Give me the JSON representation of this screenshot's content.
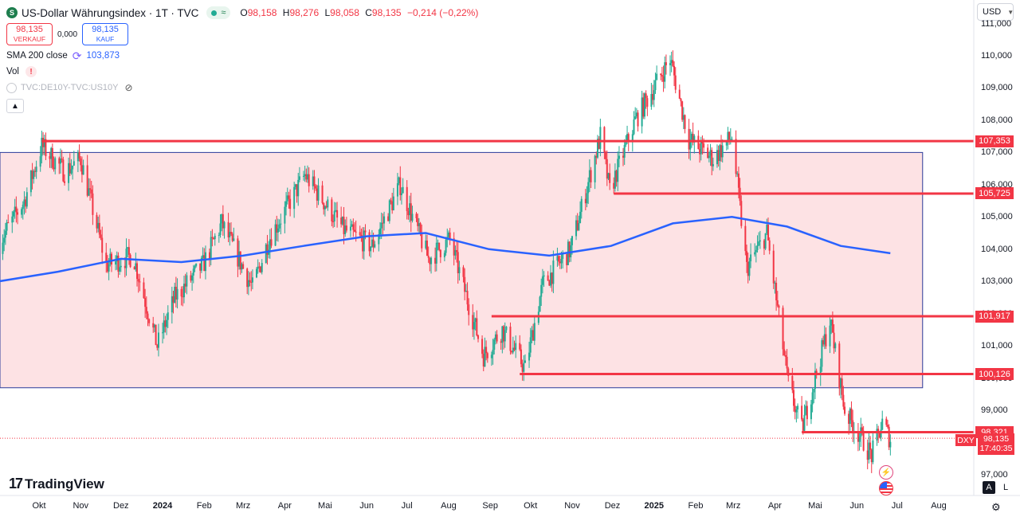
{
  "header": {
    "symbol_badge": "S",
    "title": "US-Dollar Währungsindex · 1T · TVC",
    "market_pill": "≈",
    "ohlc": {
      "o_label": "O",
      "o": "98,158",
      "h_label": "H",
      "h": "98,276",
      "l_label": "L",
      "l": "98,058",
      "c_label": "C",
      "c": "98,135",
      "change": "−0,214 (−0,22%)"
    }
  },
  "trade": {
    "sell_price": "98,135",
    "sell_label": "VERKAUF",
    "spread": "0,000",
    "buy_price": "98,135",
    "buy_label": "KAUF"
  },
  "indicators": {
    "sma_label": "SMA 200 close",
    "sma_value": "103,873",
    "vol_label": "Vol",
    "vol_warning": "!",
    "compare_symbol": "TVC:DE10Y-TVC:US10Y",
    "collapse_icon": "chevron-up-icon"
  },
  "currency_button": {
    "label": "USD",
    "icon": "chevron-down-icon"
  },
  "branding": {
    "logo_text": "TradingView",
    "logo_mark": "17"
  },
  "bottom_controls": {
    "auto_label": "A",
    "log_label": "L",
    "settings_icon": "gear-icon"
  },
  "event_icons": [
    "lightning-icon",
    "us-flag-icon"
  ],
  "colors": {
    "up": "#22ab94",
    "down": "#f23645",
    "sma": "#2962ff",
    "zone_fill": "#fde2e4",
    "zone_border": "#2a3a9a",
    "level": "#f23645"
  },
  "chart_data": {
    "type": "candlestick",
    "symbol": "DXY",
    "interval": "1T",
    "ylim": [
      96.8,
      111.2
    ],
    "y_ticks": [
      "97,000",
      "98,000",
      "99,000",
      "100,000",
      "101,000",
      "102,000",
      "103,000",
      "104,000",
      "105,000",
      "106,000",
      "107,000",
      "108,000",
      "109,000",
      "110,000",
      "111,000"
    ],
    "x_ticks": [
      {
        "label": "Okt",
        "date": "2023-10-01"
      },
      {
        "label": "Nov",
        "date": "2023-11-01"
      },
      {
        "label": "Dez",
        "date": "2023-12-01"
      },
      {
        "label": "2024",
        "date": "2024-01-01",
        "bold": true
      },
      {
        "label": "Feb",
        "date": "2024-02-01"
      },
      {
        "label": "Mrz",
        "date": "2024-03-01"
      },
      {
        "label": "Apr",
        "date": "2024-04-01"
      },
      {
        "label": "Mai",
        "date": "2024-05-01"
      },
      {
        "label": "Jun",
        "date": "2024-06-01"
      },
      {
        "label": "Jul",
        "date": "2024-07-01"
      },
      {
        "label": "Aug",
        "date": "2024-08-01"
      },
      {
        "label": "Sep",
        "date": "2024-09-01"
      },
      {
        "label": "Okt",
        "date": "2024-10-01"
      },
      {
        "label": "Nov",
        "date": "2024-11-01"
      },
      {
        "label": "Dez",
        "date": "2024-12-01"
      },
      {
        "label": "2025",
        "date": "2025-01-01",
        "bold": true
      },
      {
        "label": "Feb",
        "date": "2025-02-01"
      },
      {
        "label": "Mrz",
        "date": "2025-03-01"
      },
      {
        "label": "Apr",
        "date": "2025-04-01"
      },
      {
        "label": "Mai",
        "date": "2025-05-01"
      },
      {
        "label": "Jun",
        "date": "2025-06-01"
      },
      {
        "label": "Jul",
        "date": "2025-07-01"
      },
      {
        "label": "Aug",
        "date": "2025-08-01"
      }
    ],
    "price_path": [
      [
        "2023-09-01",
        104.2
      ],
      [
        "2023-09-20",
        105.5
      ],
      [
        "2023-10-03",
        107.2
      ],
      [
        "2023-10-20",
        106.4
      ],
      [
        "2023-11-01",
        106.8
      ],
      [
        "2023-11-20",
        103.5
      ],
      [
        "2023-12-10",
        103.8
      ],
      [
        "2023-12-28",
        101.0
      ],
      [
        "2024-01-10",
        102.5
      ],
      [
        "2024-01-31",
        103.5
      ],
      [
        "2024-02-14",
        104.8
      ],
      [
        "2024-03-08",
        102.8
      ],
      [
        "2024-03-20",
        104.3
      ],
      [
        "2024-04-16",
        106.3
      ],
      [
        "2024-05-15",
        104.6
      ],
      [
        "2024-06-05",
        104.1
      ],
      [
        "2024-06-26",
        106.0
      ],
      [
        "2024-07-17",
        103.7
      ],
      [
        "2024-08-02",
        104.3
      ],
      [
        "2024-08-27",
        100.7
      ],
      [
        "2024-09-10",
        101.5
      ],
      [
        "2024-09-27",
        100.3
      ],
      [
        "2024-10-10",
        102.9
      ],
      [
        "2024-10-31",
        104.0
      ],
      [
        "2024-11-22",
        107.5
      ],
      [
        "2024-11-29",
        105.8
      ],
      [
        "2024-12-18",
        108.0
      ],
      [
        "2025-01-13",
        109.9
      ],
      [
        "2025-01-27",
        107.4
      ],
      [
        "2025-02-14",
        106.8
      ],
      [
        "2025-02-28",
        107.5
      ],
      [
        "2025-03-11",
        103.4
      ],
      [
        "2025-03-26",
        104.5
      ],
      [
        "2025-04-11",
        99.8
      ],
      [
        "2025-04-21",
        98.4
      ],
      [
        "2025-05-12",
        101.8
      ],
      [
        "2025-05-23",
        99.0
      ],
      [
        "2025-06-12",
        97.6
      ],
      [
        "2025-06-20",
        98.6
      ],
      [
        "2025-06-26",
        98.1
      ]
    ],
    "sma200": {
      "name": "SMA 200 close",
      "value": 103.873,
      "points": [
        [
          "2023-09-01",
          103.0
        ],
        [
          "2023-10-15",
          103.3
        ],
        [
          "2023-12-01",
          103.7
        ],
        [
          "2024-01-15",
          103.6
        ],
        [
          "2024-03-01",
          103.8
        ],
        [
          "2024-04-15",
          104.1
        ],
        [
          "2024-06-01",
          104.4
        ],
        [
          "2024-07-15",
          104.5
        ],
        [
          "2024-08-31",
          104.0
        ],
        [
          "2024-10-15",
          103.8
        ],
        [
          "2024-11-30",
          104.1
        ],
        [
          "2025-01-15",
          104.8
        ],
        [
          "2025-02-28",
          105.0
        ],
        [
          "2025-04-10",
          104.7
        ],
        [
          "2025-05-20",
          104.1
        ],
        [
          "2025-06-26",
          103.873
        ]
      ]
    },
    "zone": {
      "from": "2023-09-01",
      "to": "2025-07-20",
      "top": 107.0,
      "bottom": 99.7
    },
    "levels": [
      {
        "value": 107.353,
        "label": "107,353",
        "from": "2023-10-03"
      },
      {
        "value": 105.725,
        "label": "105,725",
        "from": "2024-12-02"
      },
      {
        "value": 101.917,
        "label": "101,917",
        "from": "2024-09-02"
      },
      {
        "value": 100.126,
        "label": "100,126",
        "from": "2024-09-23"
      },
      {
        "value": 98.321,
        "label": "98,321",
        "from": "2025-04-21"
      }
    ],
    "current": {
      "symbol": "DXY",
      "price": "98,135",
      "countdown": "17:40:35",
      "value": 98.135
    }
  }
}
